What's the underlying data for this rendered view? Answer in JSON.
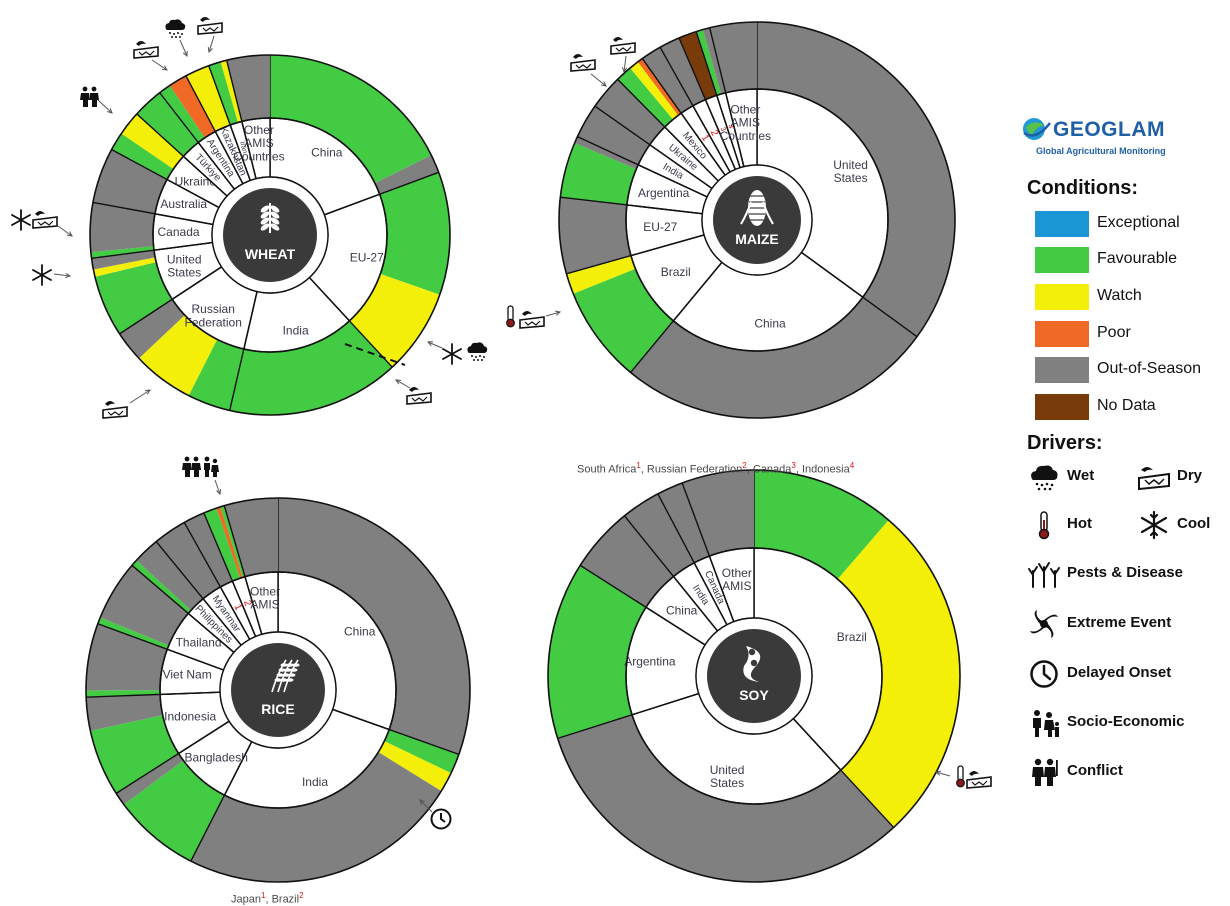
{
  "colors": {
    "Exceptional": "#1a96d4",
    "Favourable": "#44cb44",
    "Watch": "#f3ef08",
    "Poor": "#f06a25",
    "Out-of-Season": "#808080",
    "No Data": "#7a3b0b",
    "center": "#3a3a3a",
    "outline": "#111111"
  },
  "footnotes": {
    "maize": [
      {
        "name": "South Africa",
        "num": "1"
      },
      {
        "name": "Russian Federation",
        "num": "2"
      },
      {
        "name": "Canada",
        "num": "3"
      },
      {
        "name": "Indonesia",
        "num": "4"
      }
    ],
    "rice": [
      {
        "name": "Japan",
        "num": "1"
      },
      {
        "name": "Brazil",
        "num": "2"
      }
    ]
  },
  "legend": {
    "logo_text": "GEOGLAM",
    "logo_subtitle": "Global Agricultural Monitoring",
    "conditions_title": "Conditions:",
    "conditions": [
      "Exceptional",
      "Favourable",
      "Watch",
      "Poor",
      "Out-of-Season",
      "No Data"
    ],
    "drivers_title": "Drivers:",
    "drivers": [
      {
        "label": "Wet",
        "icon": "rain-cloud-icon"
      },
      {
        "label": "Dry",
        "icon": "dry-cracked-earth-icon"
      },
      {
        "label": "Hot",
        "icon": "thermometer-icon"
      },
      {
        "label": "Cool",
        "icon": "snowflake-icon"
      },
      {
        "label": "Pests & Disease",
        "icon": "pests-disease-icon"
      },
      {
        "label": "Extreme Event",
        "icon": "cyclone-icon"
      },
      {
        "label": "Delayed Onset",
        "icon": "clock-icon"
      },
      {
        "label": "Socio-Economic",
        "icon": "family-icon"
      },
      {
        "label": "Conflict",
        "icon": "soldiers-icon"
      }
    ]
  },
  "chart_data": [
    {
      "type": "donut",
      "crop": "WHEAT",
      "center_icon": "wheat-icon",
      "countries": [
        {
          "name": "China",
          "share": 17.5,
          "outer": [
            [
              "Favourable",
              16.0
            ],
            [
              "Out-of-Season",
              1.5
            ]
          ]
        },
        {
          "name": "EU-27",
          "share": 17.0,
          "outer": [
            [
              "Favourable",
              10.0
            ],
            [
              "Watch",
              7.0
            ]
          ]
        },
        {
          "name": "India",
          "share": 14.0,
          "outer": [
            [
              "Favourable",
              14.0
            ]
          ]
        },
        {
          "name": "Russian Federation",
          "share": 11.0,
          "outer": [
            [
              "Favourable",
              3.5
            ],
            [
              "Watch",
              5.0
            ],
            [
              "Out-of-Season",
              2.5
            ]
          ]
        },
        {
          "name": "United States",
          "share": 6.5,
          "outer": [
            [
              "Favourable",
              5.0
            ],
            [
              "Watch",
              0.6
            ],
            [
              "Out-of-Season",
              0.9
            ]
          ]
        },
        {
          "name": "Canada",
          "share": 4.5,
          "outer": [
            [
              "Favourable",
              0.5
            ],
            [
              "Out-of-Season",
              4.0
            ]
          ]
        },
        {
          "name": "Australia",
          "share": 4.5,
          "outer": [
            [
              "Out-of-Season",
              4.5
            ]
          ]
        },
        {
          "name": "Ukraine",
          "share": 3.5,
          "outer": [
            [
              "Favourable",
              1.5
            ],
            [
              "Watch",
              2.0
            ]
          ]
        },
        {
          "name": "Türkiye",
          "share": 2.5,
          "outer": [
            [
              "Favourable",
              2.5
            ]
          ]
        },
        {
          "name": "Argentina",
          "share": 2.5,
          "outer": [
            [
              "Favourable",
              1.0
            ],
            [
              "Poor",
              1.5
            ]
          ]
        },
        {
          "name": "Kazakhstan",
          "share": 2.0,
          "outer": [
            [
              "Watch",
              2.0
            ]
          ]
        },
        {
          "name": "Iran",
          "share": 1.5,
          "outer": [
            [
              "Favourable",
              1.0
            ],
            [
              "Watch",
              0.5
            ]
          ]
        },
        {
          "name": "Other AMIS Countries",
          "share": 3.5,
          "outer": [
            [
              "Out-of-Season",
              3.5
            ]
          ]
        }
      ],
      "footnote_countries": []
    },
    {
      "type": "donut",
      "crop": "MAIZE",
      "center_icon": "maize-icon",
      "countries": [
        {
          "name": "United States",
          "share": 31.0,
          "outer": [
            [
              "Out-of-Season",
              31.0
            ]
          ]
        },
        {
          "name": "China",
          "share": 23.0,
          "outer": [
            [
              "Out-of-Season",
              23.0
            ]
          ]
        },
        {
          "name": "Brazil",
          "share": 8.5,
          "outer": [
            [
              "Favourable",
              7.0
            ],
            [
              "Watch",
              1.5
            ]
          ]
        },
        {
          "name": "EU-27",
          "share": 5.5,
          "outer": [
            [
              "Out-of-Season",
              5.5
            ]
          ]
        },
        {
          "name": "Argentina",
          "share": 4.5,
          "outer": [
            [
              "Favourable",
              4.0
            ],
            [
              "Out-of-Season",
              0.5
            ]
          ]
        },
        {
          "name": "India",
          "share": 2.5,
          "outer": [
            [
              "Out-of-Season",
              2.5
            ]
          ]
        },
        {
          "name": "Ukraine",
          "share": 2.5,
          "outer": [
            [
              "Out-of-Season",
              2.5
            ]
          ]
        },
        {
          "name": "Mexico",
          "share": 2.3,
          "outer": [
            [
              "Favourable",
              1.2
            ],
            [
              "Watch",
              0.7
            ],
            [
              "Poor",
              0.4
            ]
          ]
        },
        {
          "name": "1",
          "share": 1.5,
          "outer": [
            [
              "Out-of-Season",
              1.5
            ]
          ]
        },
        {
          "name": "2",
          "share": 1.5,
          "outer": [
            [
              "Out-of-Season",
              1.5
            ]
          ]
        },
        {
          "name": "3",
          "share": 1.3,
          "outer": [
            [
              "No Data",
              1.3
            ]
          ]
        },
        {
          "name": "4",
          "share": 1.0,
          "outer": [
            [
              "Favourable",
              0.5
            ],
            [
              "Out-of-Season",
              0.5
            ]
          ]
        },
        {
          "name": "Other AMIS Countries",
          "share": 3.4,
          "outer": [
            [
              "Out-of-Season",
              3.4
            ]
          ]
        }
      ],
      "footnote_countries": [
        "South Africa",
        "Russian Federation",
        "Canada",
        "Indonesia"
      ]
    },
    {
      "type": "donut",
      "crop": "RICE",
      "center_icon": "rice-icon",
      "countries": [
        {
          "name": "China",
          "share": 27.0,
          "outer": [
            [
              "Out-of-Season",
              27.0
            ]
          ]
        },
        {
          "name": "India",
          "share": 24.0,
          "outer": [
            [
              "Favourable",
              1.5
            ],
            [
              "Watch",
              1.5
            ],
            [
              "Out-of-Season",
              21.0
            ]
          ]
        },
        {
          "name": "Bangladesh",
          "share": 7.5,
          "outer": [
            [
              "Favourable",
              6.5
            ],
            [
              "Out-of-Season",
              1.0
            ]
          ]
        },
        {
          "name": "Indonesia",
          "share": 7.5,
          "outer": [
            [
              "Favourable",
              5.0
            ],
            [
              "Out-of-Season",
              2.5
            ]
          ]
        },
        {
          "name": "Viet Nam",
          "share": 5.5,
          "outer": [
            [
              "Favourable",
              0.5
            ],
            [
              "Out-of-Season",
              5.0
            ]
          ]
        },
        {
          "name": "Thailand",
          "share": 5.0,
          "outer": [
            [
              "Favourable",
              0.5
            ],
            [
              "Out-of-Season",
              4.5
            ]
          ]
        },
        {
          "name": "Philippines",
          "share": 2.5,
          "outer": [
            [
              "Favourable",
              0.5
            ],
            [
              "Out-of-Season",
              2.0
            ]
          ]
        },
        {
          "name": "Myanmar",
          "share": 2.5,
          "outer": [
            [
              "Out-of-Season",
              2.5
            ]
          ]
        },
        {
          "name": "1",
          "share": 1.6,
          "outer": [
            [
              "Out-of-Season",
              1.6
            ]
          ]
        },
        {
          "name": "2",
          "share": 1.6,
          "outer": [
            [
              "Favourable",
              1.0
            ],
            [
              "Poor",
              0.3
            ],
            [
              "Favourable",
              0.3
            ]
          ]
        },
        {
          "name": "Other AMIS",
          "share": 4.0,
          "outer": [
            [
              "Out-of-Season",
              4.0
            ]
          ]
        }
      ],
      "footnote_countries": [
        "Japan",
        "Brazil"
      ]
    },
    {
      "type": "donut",
      "crop": "SOY",
      "center_icon": "soy-icon",
      "countries": [
        {
          "name": "Brazil",
          "share": 37.0,
          "outer": [
            [
              "Favourable",
              11.0
            ],
            [
              "Watch",
              26.0
            ]
          ]
        },
        {
          "name": "United States",
          "share": 31.0,
          "outer": [
            [
              "Out-of-Season",
              31.0
            ]
          ]
        },
        {
          "name": "Argentina",
          "share": 13.5,
          "outer": [
            [
              "Favourable",
              13.5
            ]
          ]
        },
        {
          "name": "China",
          "share": 5.0,
          "outer": [
            [
              "Out-of-Season",
              5.0
            ]
          ]
        },
        {
          "name": "India",
          "share": 3.0,
          "outer": [
            [
              "Out-of-Season",
              3.0
            ]
          ]
        },
        {
          "name": "Canada",
          "share": 2.0,
          "outer": [
            [
              "Out-of-Season",
              2.0
            ]
          ]
        },
        {
          "name": "Other AMIS",
          "share": 5.5,
          "outer": [
            [
              "Out-of-Season",
              5.5
            ]
          ]
        }
      ],
      "footnote_countries": []
    }
  ]
}
